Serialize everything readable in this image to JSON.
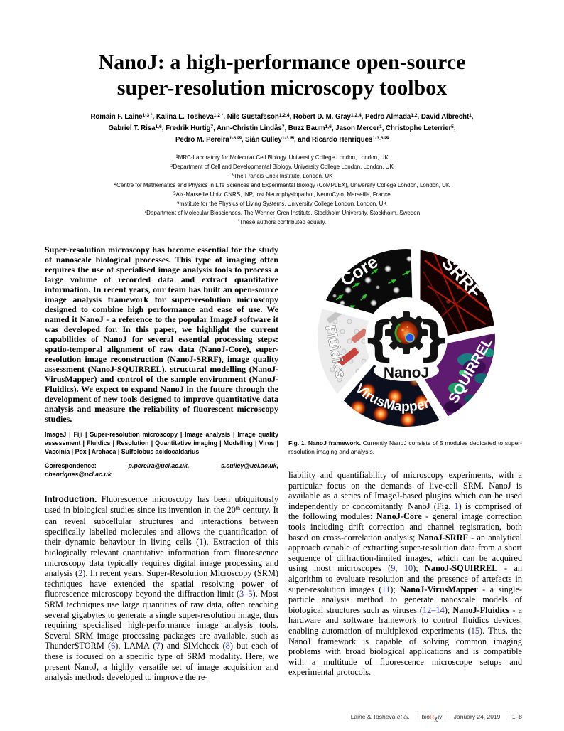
{
  "title": {
    "line1": "NanoJ: a high-performance open-source",
    "line2": "super-resolution microscopy toolbox"
  },
  "authors": {
    "lines": [
      [
        {
          "n": "Romain F. Laine",
          "s": "1-3 *",
          "tail": ", "
        },
        {
          "n": "Kalina L. Tosheva",
          "s": "1,2 *",
          "tail": ", "
        },
        {
          "n": "Nils Gustafsson",
          "s": "1,2,4",
          "tail": ", "
        },
        {
          "n": "Robert D. M. Gray",
          "s": "1,2,4",
          "tail": ", "
        },
        {
          "n": "Pedro Almada",
          "s": "1,2",
          "tail": ", "
        },
        {
          "n": "David Albrecht",
          "s": "1",
          "tail": ","
        }
      ],
      [
        {
          "n": "Gabriel T. Risa",
          "s": "1,6",
          "tail": ", "
        },
        {
          "n": "Fredrik Hurtig",
          "s": "7",
          "tail": ", "
        },
        {
          "n": "Ann-Christin Lindås",
          "s": "7",
          "tail": ", "
        },
        {
          "n": "Buzz Baum",
          "s": "1,6",
          "tail": ", "
        },
        {
          "n": "Jason Mercer",
          "s": "1",
          "tail": ", "
        },
        {
          "n": "Christophe Leterrier",
          "s": "5",
          "tail": ","
        }
      ],
      [
        {
          "n": "Pedro M. Pereira",
          "s": "1-3 ✉",
          "tail": ", "
        },
        {
          "n": "Siân Culley",
          "s": "1-3 ✉",
          "tail": ", "
        },
        {
          "n": "and Ricardo Henriques",
          "s": "1-3,6 ✉",
          "tail": ""
        }
      ]
    ]
  },
  "affiliations": [
    {
      "sup": "1",
      "text": "MRC-Laboratory for Molecular Cell Biology. University College London, London, UK"
    },
    {
      "sup": "2",
      "text": "Department of Cell and Developmental Biology, University College London, London, UK"
    },
    {
      "sup": "3",
      "text": "The Francis Crick Institute, London, UK"
    },
    {
      "sup": "4",
      "text": "Centre for Mathematics and Physics in Life Sciences and Experimental Biology (CoMPLEX), University College London, London, UK"
    },
    {
      "sup": "5",
      "text": "Aix-Marseille Univ, CNRS, INP, Inst Neurophysiopathol, NeuroCyto, Marseille, France"
    },
    {
      "sup": "6",
      "text": "Institute for the Physics of Living Systems, University College London, London, UK"
    },
    {
      "sup": "7",
      "text": "Department of Molecular Biosciences, The Wenner-Gren Institute, Stockholm University, Stockholm, Sweden"
    },
    {
      "sup": "*",
      "text": "These authors contributed equally."
    }
  ],
  "abstract": "Super-resolution microscopy has become essential for the study of nanoscale biological processes. This type of imaging often requires the use of specialised image analysis tools to process a large volume of recorded data and extract quantitative information. In recent years, our team has built an open-source image analysis framework for super-resolution microscopy designed to combine high performance and ease of use. We named it NanoJ - a reference to the popular ImageJ software it was developed for. In this paper, we highlight the current capabilities of NanoJ for several essential processing steps: spatio-temporal alignment of raw data (NanoJ-Core), super-resolution image reconstruction (NanoJ-SRRF), image quality assessment (NanoJ-SQUIRREL), structural modelling (NanoJ-VirusMapper) and control of the sample environment (NanoJ-Fluidics). We expect to expand NanoJ in the future through the development of new tools designed to improve quantitative data analysis and measure the reliability of fluorescent microscopy studies.",
  "keywords": "ImageJ | Fiji | Super-resolution microscopy | Image analysis | Image quality assessment | Fluidics | Resolution | Quantitative imaging | Modelling | Virus | Vaccinia | Pox | Archaea | Sulfolobus acidocaldarius",
  "correspondence": {
    "segments": [
      {
        "t": "Correspondence: "
      },
      {
        "t": "p.pereira@ucl.ac.uk,",
        "c": "em"
      },
      {
        "t": " "
      },
      {
        "t": "s.culley@ucl.ac.uk,",
        "c": "em"
      },
      {
        "t": " "
      },
      {
        "t": "r.henriques@ucl.ac.uk",
        "c": "em"
      }
    ]
  },
  "intro": {
    "segments": [
      {
        "t": "Introduction.",
        "c": "h"
      },
      {
        "t": " Fluorescence microscopy has been ubiquitously used in biological studies since its invention in the 20"
      },
      {
        "t": "th",
        "c": "sup"
      },
      {
        "t": " century. It can reveal subcellular structures and interactions between specifically labelled molecules and allows the quantification of their dynamic behaviour in living cells ("
      },
      {
        "t": "1",
        "c": "r"
      },
      {
        "t": "). Extraction of this biologically relevant quantitative information from fluorescence microscopy data typically requires digital image processing and analysis ("
      },
      {
        "t": "2",
        "c": "r"
      },
      {
        "t": "). In recent years, Super-Resolution Microscopy (SRM) techniques have extended the spatial resolving power of fluorescence microscopy beyond the diffraction limit ("
      },
      {
        "t": "3–5",
        "c": "r"
      },
      {
        "t": "). Most SRM techniques use large quantities of raw data, often reaching several gigabytes to generate a single super-resolution image, thus requiring specialised high-performance image analysis tools. Several SRM image processing packages are available, such as ThunderSTORM ("
      },
      {
        "t": "6",
        "c": "r"
      },
      {
        "t": "), LAMA ("
      },
      {
        "t": "7",
        "c": "r"
      },
      {
        "t": ") and SIMcheck ("
      },
      {
        "t": "8",
        "c": "r"
      },
      {
        "t": ") but each of these is focused on a specific type of SRM modality. Here, we present NanoJ, a highly versatile set of image acquisition and analysis methods developed to improve the re-"
      }
    ]
  },
  "figure": {
    "labels": {
      "core": "Core",
      "srrf": "SRRF",
      "squirrel": "SQUIRREL",
      "virusmapper": "VirusMapper",
      "fluidics": "Fluidics",
      "center": "NanoJ",
      "brace_left": "{",
      "brace_right": "}"
    },
    "caption": {
      "segments": [
        {
          "t": "Fig. 1. NanoJ framework.",
          "c": "b"
        },
        {
          "t": " Currently NanoJ consists of 5 modules dedicated to super-resolution imaging and analysis."
        }
      ]
    }
  },
  "right_column": {
    "segments": [
      {
        "t": "liability and quantifiability of microscopy experiments, with a particular focus on the demands of live-cell SRM. NanoJ is available as a series of ImageJ-based plugins which can be used independently or concomitantly. NanoJ (Fig. "
      },
      {
        "t": "1",
        "c": "r"
      },
      {
        "t": ") is comprised of the following modules: "
      },
      {
        "t": "NanoJ-Core",
        "c": "b"
      },
      {
        "t": " - general image correction tools including drift correction and channel registration, both based on cross-correlation analysis; "
      },
      {
        "t": "NanoJ-SRRF",
        "c": "b"
      },
      {
        "t": " - an analytical approach capable of extracting super-resolution data from a short sequence of diffraction-limited images, which can be acquired using most microscopes ("
      },
      {
        "t": "9",
        "c": "r"
      },
      {
        "t": ", "
      },
      {
        "t": "10",
        "c": "r"
      },
      {
        "t": "); "
      },
      {
        "t": "NanoJ-SQUIRREL",
        "c": "b"
      },
      {
        "t": " - an algorithm to evaluate resolution and the presence of artefacts in super-resolution images ("
      },
      {
        "t": "11",
        "c": "r"
      },
      {
        "t": "); "
      },
      {
        "t": "NanoJ-VirusMapper",
        "c": "b"
      },
      {
        "t": " - a single-particle analysis method to generate nanoscale models of biological structures such as viruses ("
      },
      {
        "t": "12–14",
        "c": "r"
      },
      {
        "t": "); "
      },
      {
        "t": "NanoJ-Fluidics",
        "c": "b"
      },
      {
        "t": " - a hardware and software framework to control fluidics devices, enabling automation of multiplexed experiments ("
      },
      {
        "t": "15",
        "c": "r"
      },
      {
        "t": "). Thus, the NanoJ framework is capable of solving common imaging problems with broad biological applications and is compatible with a multitude of fluorescence microscope setups and experimental protocols."
      }
    ]
  },
  "footer": {
    "segments": [
      {
        "t": "Laine & Tosheva "
      },
      {
        "t": "et al.",
        "c": "i"
      },
      {
        "t": "   |   bio"
      },
      {
        "t": "R",
        "c": "red"
      },
      {
        "t": "χ",
        "c": "chi"
      },
      {
        "t": "iv   |   January 24, 2019   |   1–8"
      }
    ]
  }
}
